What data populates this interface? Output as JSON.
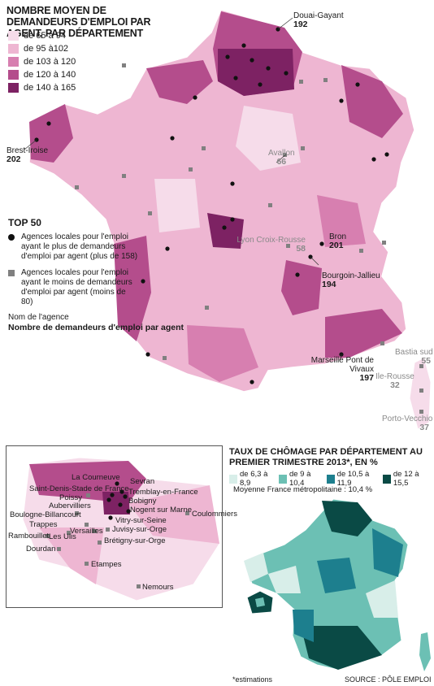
{
  "title": "NOMBRE MOYEN DE DEMANDEURS D'EMPLOI PAR AGENT, PAR DÉPARTEMENT",
  "legend": [
    {
      "label": "de 65 à 94",
      "color": "#f6dcea"
    },
    {
      "label": "de 95 à102",
      "color": "#eeb6d2"
    },
    {
      "label": "de 103 à 120",
      "color": "#d77fb0"
    },
    {
      "label": "de 120 à 140",
      "color": "#b44d8c"
    },
    {
      "label": "de 140 à 165",
      "color": "#7d2263"
    }
  ],
  "top50": {
    "heading": "TOP 50",
    "most_label": "Agences locales pour l'emploi ayant le plus de demandeurs d'emploi par agent (plus de 158)",
    "least_label": "Agences locales pour l'emploi ayant le moins de demandeurs d'emploi par agent (moins de 80)"
  },
  "note": {
    "line1": "Nom de l'agence",
    "line2": "Nombre de demandeurs d'emploi par agent"
  },
  "agencies": [
    {
      "name": "Douai-Gayant",
      "value": "192"
    },
    {
      "name": "Brest-Iroise",
      "value": "202"
    },
    {
      "name": "Avallon",
      "value": "66"
    },
    {
      "name": "Lyon Croix-Rousse",
      "value": "58"
    },
    {
      "name": "Bron",
      "value": "201"
    },
    {
      "name": "Bourgoin-Jallieu",
      "value": "194"
    },
    {
      "name": "Marseille Pont de Vivaux",
      "value": "197"
    },
    {
      "name": "Bastia sud",
      "value": "55"
    },
    {
      "name": "Ile-Rousse",
      "value": "32"
    },
    {
      "name": "Porto-Vecchio",
      "value": "37"
    }
  ],
  "idf_labels": [
    "La Courneuve",
    "Sevran",
    "Saint-Denis-Stade de France",
    "Tremblay-en-France",
    "Poissy",
    "Bobigny",
    "Aubervilliers",
    "Nogent sur Marne",
    "Boulogne-Billancourt",
    "Coulommiers",
    "Trappes",
    "Vitry-sur-Seine",
    "Versailles",
    "Juvisy-sur-Orge",
    "Rambouillet",
    "Les Ulis",
    "Brétigny-sur-Orge",
    "Dourdan",
    "Etampes",
    "Nemours"
  ],
  "chomage": {
    "title": "TAUX DE CHÔMAGE PAR DÉPARTEMENT AU PREMIER TRIMESTRE 2013*, EN %",
    "legend": [
      {
        "label": "de 6,3 à 8,9",
        "color": "#d8eee9"
      },
      {
        "label": "de 9 à 10,4",
        "color": "#6cc0b4"
      },
      {
        "label": "de 10,5 à 11,9",
        "color": "#1d7f8e"
      },
      {
        "label": "de 12 à 15,5",
        "color": "#0a4a45"
      }
    ],
    "average": "Moyenne France métropolitaine : 10,4 %"
  },
  "footnote": "*estimations",
  "source": "SOURCE : PÔLE EMPLOI"
}
